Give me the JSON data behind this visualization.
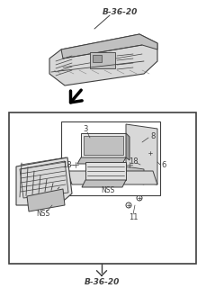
{
  "bg_color": "#ffffff",
  "line_color": "#404040",
  "gray_light": "#d8d8d8",
  "gray_mid": "#c0c0c0",
  "gray_dark": "#a0a0a0",
  "label_top": "B-36-20",
  "label_bottom": "B-36-20",
  "figsize": [
    2.29,
    3.2
  ],
  "dpi": 100
}
